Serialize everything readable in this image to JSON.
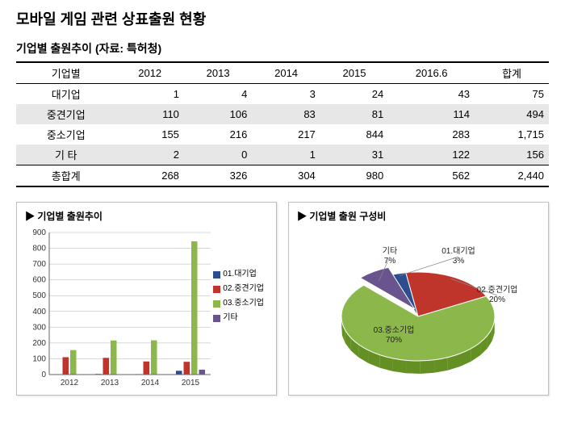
{
  "title": "모바일 게임 관련 상표출원 현황",
  "subtitle": "기업별 출원추이 (자료: 특허청)",
  "table": {
    "columns": [
      "기업별",
      "2012",
      "2013",
      "2014",
      "2015",
      "2016.6",
      "합계"
    ],
    "rows": [
      [
        "대기업",
        "1",
        "4",
        "3",
        "24",
        "43",
        "75"
      ],
      [
        "중견기업",
        "110",
        "106",
        "83",
        "81",
        "114",
        "494"
      ],
      [
        "중소기업",
        "155",
        "216",
        "217",
        "844",
        "283",
        "1,715"
      ],
      [
        "기 타",
        "2",
        "0",
        "1",
        "31",
        "122",
        "156"
      ],
      [
        "총합계",
        "268",
        "326",
        "304",
        "980",
        "562",
        "2,440"
      ]
    ],
    "alt_rows": [
      1,
      3
    ],
    "total_row": 4
  },
  "bar_chart": {
    "title": "기업별 출원추이",
    "type": "bar",
    "categories": [
      "2012",
      "2013",
      "2014",
      "2015"
    ],
    "series": [
      {
        "name": "01.대기업",
        "color": "#2c4d8e",
        "values": [
          1,
          4,
          3,
          24
        ]
      },
      {
        "name": "02.중견기업",
        "color": "#c0352b",
        "values": [
          110,
          106,
          83,
          81
        ]
      },
      {
        "name": "03.중소기업",
        "color": "#8cb84b",
        "values": [
          155,
          216,
          217,
          844
        ]
      },
      {
        "name": "기타",
        "color": "#6a548e",
        "values": [
          2,
          0,
          1,
          31
        ]
      }
    ],
    "ylim": [
      0,
      900
    ],
    "ytick_step": 100,
    "grid_color": "#b0b0b0",
    "axis_color": "#666666",
    "label_fontsize": 10,
    "bar_gap": 2,
    "bar_group_gap": 14,
    "plot_bg": "#ffffff"
  },
  "pie_chart": {
    "title": "기업별 출원 구성비",
    "type": "pie",
    "slices": [
      {
        "name": "01.대기업",
        "label": "01.대기업",
        "value": 3,
        "color": "#2c4d8e",
        "pct": "3%"
      },
      {
        "name": "02.중견기업",
        "label": "02.중견기업",
        "value": 20,
        "color": "#c0352b",
        "pct": "20%"
      },
      {
        "name": "03.중소기업",
        "label": "03.중소기업",
        "value": 70,
        "color": "#8cb84b",
        "pct": "70%"
      },
      {
        "name": "기타",
        "label": "기타",
        "value": 7,
        "color": "#6a548e",
        "pct": "7%"
      }
    ],
    "label_fontsize": 10,
    "stroke": "#ffffff"
  }
}
